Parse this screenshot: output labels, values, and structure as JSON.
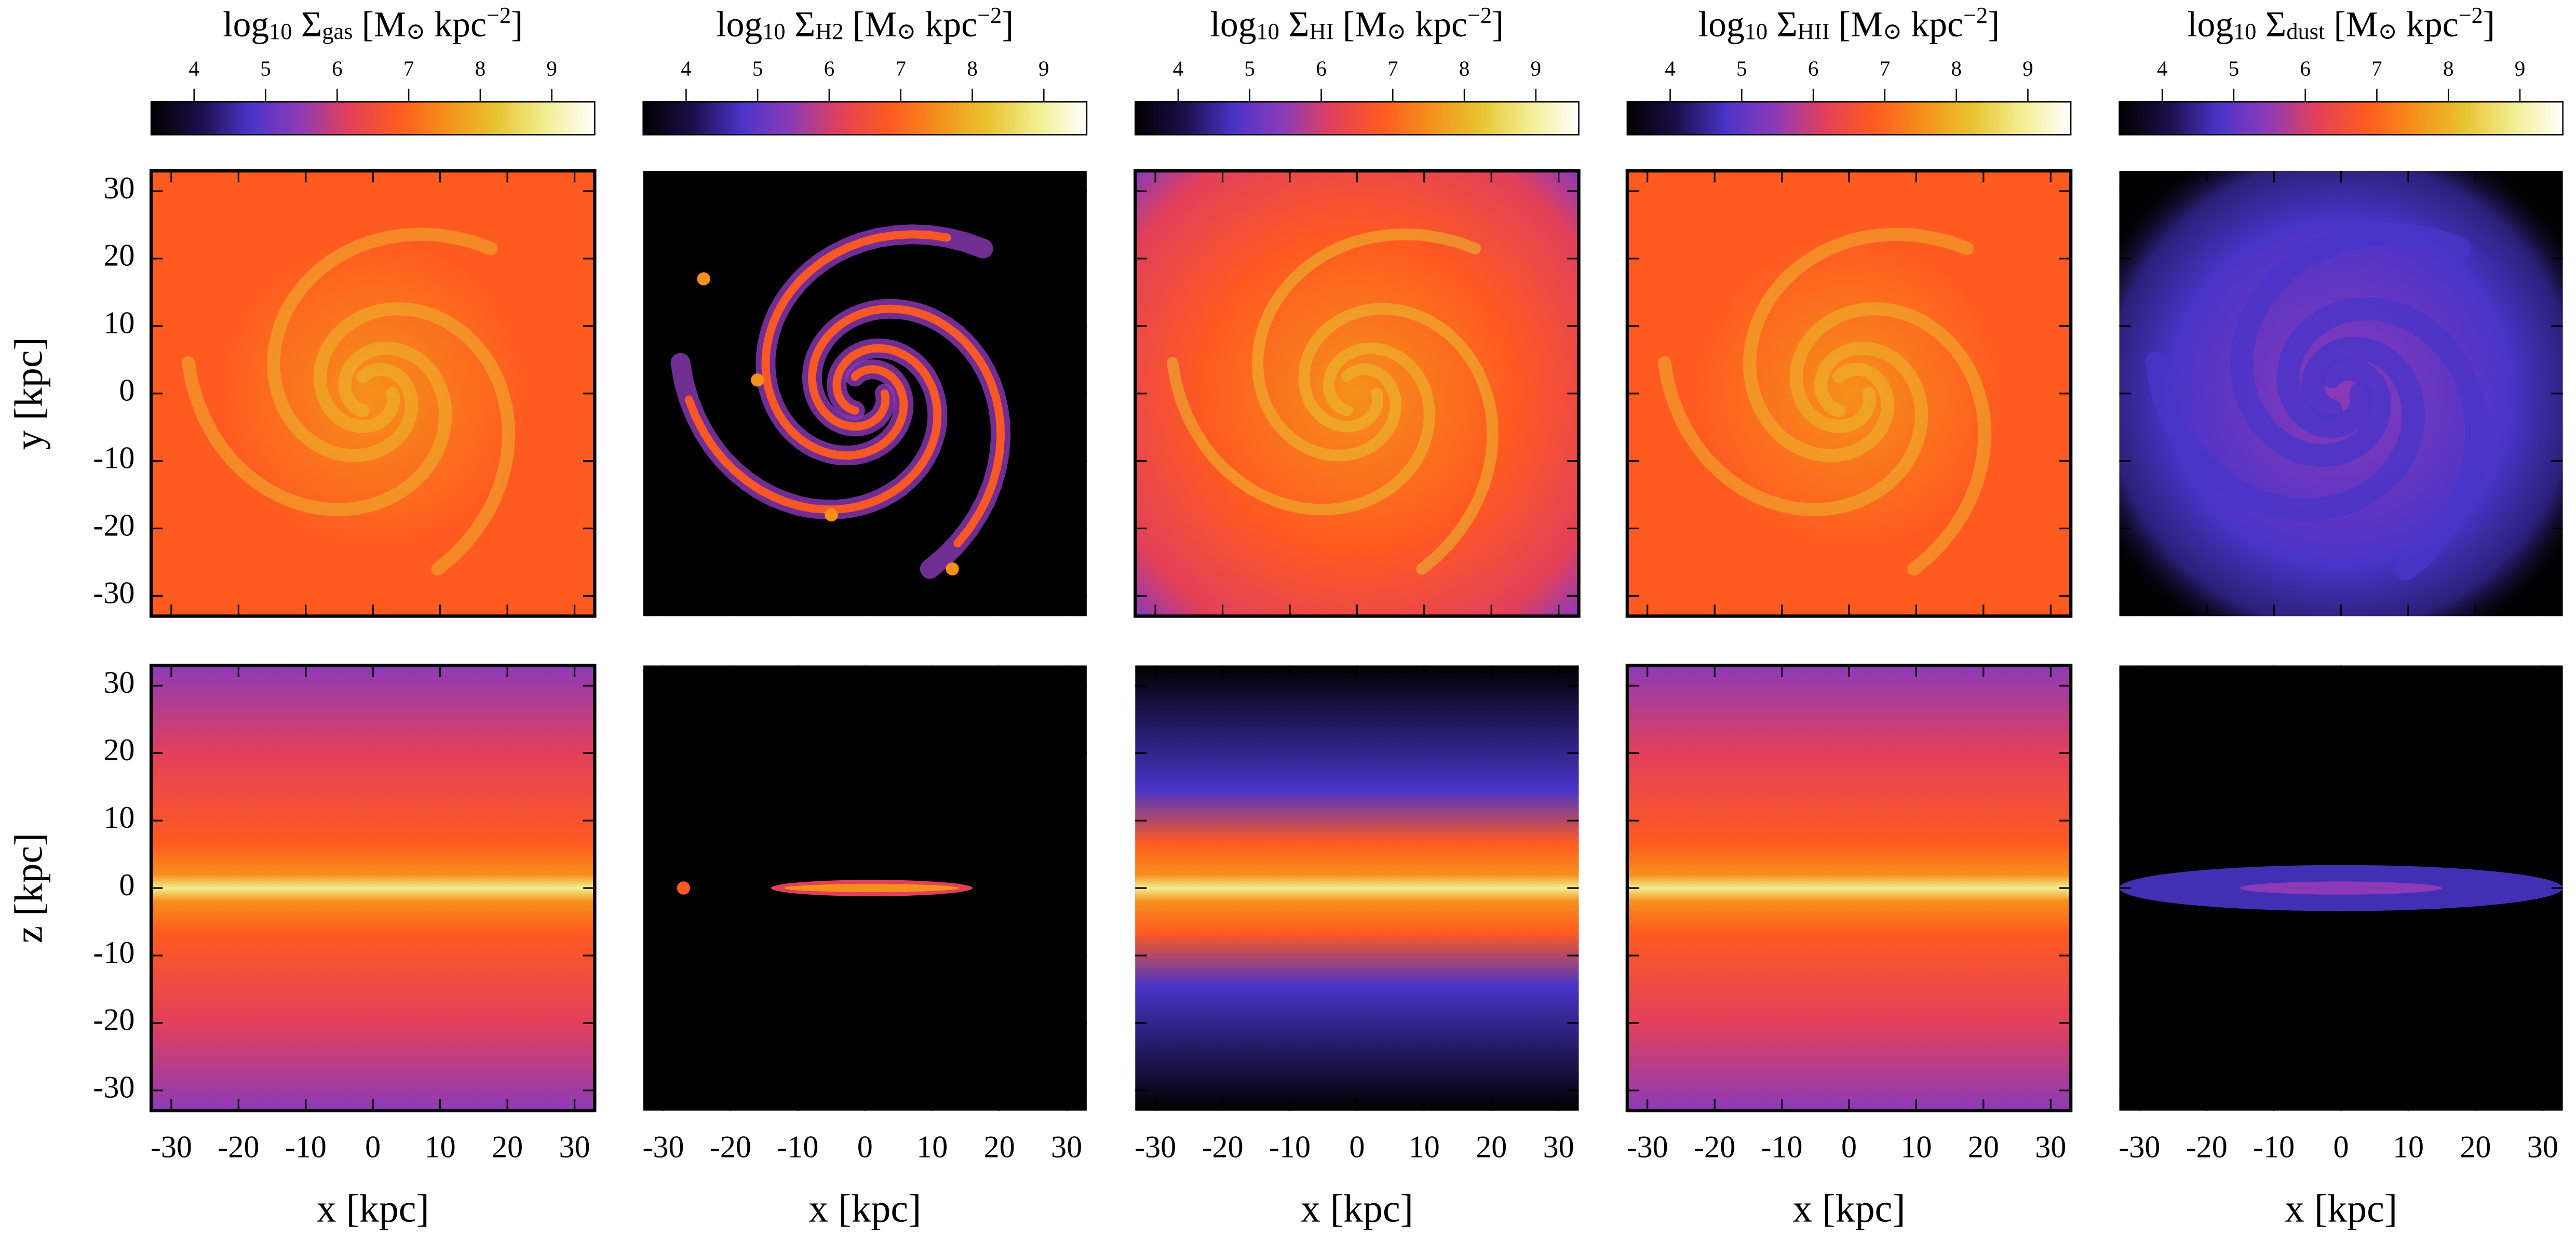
{
  "chart_data": [
    {
      "type": "image",
      "label": [
        "log",
        "10",
        " Σ",
        "gas",
        " [M",
        "⊙",
        " kpc",
        "−2",
        "]"
      ],
      "clim": [
        3.4,
        9.6
      ],
      "cticks": [
        4,
        5,
        6,
        7,
        8,
        9
      ],
      "colormap": [
        "#000000",
        "#1c0e4a",
        "#4a34c8",
        "#8c3ab8",
        "#e2405a",
        "#ff5a20",
        "#f5901a",
        "#e8c430",
        "#f2ee90",
        "#ffffff"
      ],
      "xlabel": "x [kpc]",
      "xlim": [
        -33,
        33
      ],
      "xticks": [
        -30,
        -20,
        -10,
        0,
        10,
        20,
        30
      ],
      "ylim": [
        -33,
        33
      ],
      "yticks": [
        30,
        20,
        10,
        0,
        -10,
        -20,
        -30
      ],
      "ylabels": [
        "y [kpc]",
        "z [kpc]"
      ]
    },
    {
      "type": "image",
      "label": [
        "log",
        "10",
        " Σ",
        "H2",
        " [M",
        "⊙",
        " kpc",
        "−2",
        "]"
      ],
      "clim": [
        3.4,
        9.6
      ],
      "cticks": [
        4,
        5,
        6,
        7,
        8,
        9
      ],
      "colormap": [
        "#000000",
        "#1c0e4a",
        "#4a34c8",
        "#8c3ab8",
        "#e2405a",
        "#ff5a20",
        "#f5901a",
        "#e8c430",
        "#f2ee90",
        "#ffffff"
      ],
      "xlabel": "x [kpc]",
      "xlim": [
        -33,
        33
      ],
      "xticks": [
        -30,
        -20,
        -10,
        0,
        10,
        20,
        30
      ]
    },
    {
      "type": "image",
      "label": [
        "log",
        "10",
        " Σ",
        "HI",
        " [M",
        "⊙",
        " kpc",
        "−2",
        "]"
      ],
      "clim": [
        3.4,
        9.6
      ],
      "cticks": [
        4,
        5,
        6,
        7,
        8,
        9
      ],
      "colormap": [
        "#000000",
        "#1c0e4a",
        "#4a34c8",
        "#8c3ab8",
        "#e2405a",
        "#ff5a20",
        "#f5901a",
        "#e8c430",
        "#f2ee90",
        "#ffffff"
      ],
      "xlabel": "x [kpc]",
      "xlim": [
        -33,
        33
      ],
      "xticks": [
        -30,
        -20,
        -10,
        0,
        10,
        20,
        30
      ]
    },
    {
      "type": "image",
      "label": [
        "log",
        "10",
        " Σ",
        "HII",
        " [M",
        "⊙",
        " kpc",
        "−2",
        "]"
      ],
      "clim": [
        3.4,
        9.6
      ],
      "cticks": [
        4,
        5,
        6,
        7,
        8,
        9
      ],
      "colormap": [
        "#000000",
        "#1c0e4a",
        "#4a34c8",
        "#8c3ab8",
        "#e2405a",
        "#ff5a20",
        "#f5901a",
        "#e8c430",
        "#f2ee90",
        "#ffffff"
      ],
      "xlabel": "x [kpc]",
      "xlim": [
        -33,
        33
      ],
      "xticks": [
        -30,
        -20,
        -10,
        0,
        10,
        20,
        30
      ]
    },
    {
      "type": "image",
      "label": [
        "log",
        "10",
        " Σ",
        "dust",
        " [M",
        "⊙",
        " kpc",
        "−2",
        "]"
      ],
      "clim": [
        3.4,
        9.6
      ],
      "cticks": [
        4,
        5,
        6,
        7,
        8,
        9
      ],
      "colormap": [
        "#000000",
        "#1c0e4a",
        "#4a34c8",
        "#8c3ab8",
        "#e2405a",
        "#ff5a20",
        "#f5901a",
        "#e8c430",
        "#f2ee90",
        "#ffffff"
      ],
      "xlabel": "x [kpc]",
      "xlim": [
        -33,
        33
      ],
      "xticks": [
        -30,
        -20,
        -10,
        0,
        10,
        20,
        30
      ]
    }
  ]
}
